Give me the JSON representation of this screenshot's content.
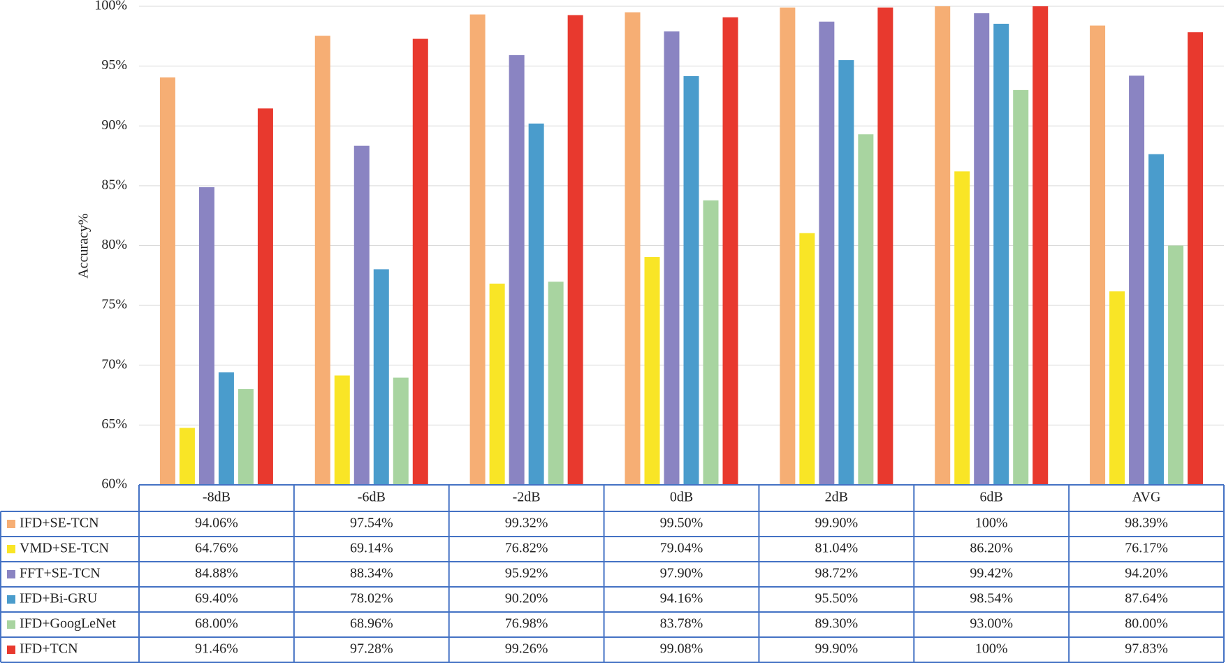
{
  "chart_data": {
    "type": "bar",
    "y_label": "Accuracy%",
    "categories": [
      "-8dB",
      "-6dB",
      "-2dB",
      "0dB",
      "2dB",
      "6dB",
      "AVG"
    ],
    "series": [
      {
        "name": "IFD+SE-TCN",
        "color": "#f6ae74",
        "values": [
          94.06,
          97.54,
          99.32,
          99.5,
          99.9,
          100,
          98.39
        ],
        "value_labels": [
          "94.06%",
          "97.54%",
          "99.32%",
          "99.50%",
          "99.90%",
          "100%",
          "98.39%"
        ]
      },
      {
        "name": "VMD+SE-TCN",
        "color": "#f9e526",
        "values": [
          64.76,
          69.14,
          76.82,
          79.04,
          81.04,
          86.2,
          76.17
        ],
        "value_labels": [
          "64.76%",
          "69.14%",
          "76.82%",
          "79.04%",
          "81.04%",
          "86.20%",
          "76.17%"
        ]
      },
      {
        "name": "FFT+SE-TCN",
        "color": "#8a84c2",
        "values": [
          84.88,
          88.34,
          95.92,
          97.9,
          98.72,
          99.42,
          94.2
        ],
        "value_labels": [
          "84.88%",
          "88.34%",
          "95.92%",
          "97.90%",
          "98.72%",
          "99.42%",
          "94.20%"
        ]
      },
      {
        "name": "IFD+Bi-GRU",
        "color": "#4a9ccc",
        "values": [
          69.4,
          78.02,
          90.2,
          94.16,
          95.5,
          98.54,
          87.64
        ],
        "value_labels": [
          "69.40%",
          "78.02%",
          "90.20%",
          "94.16%",
          "95.50%",
          "98.54%",
          "87.64%"
        ]
      },
      {
        "name": "IFD+GoogLeNet",
        "color": "#a8d4a0",
        "values": [
          68.0,
          68.96,
          76.98,
          83.78,
          89.3,
          93.0,
          80.0
        ],
        "value_labels": [
          "68.00%",
          "68.96%",
          "76.98%",
          "83.78%",
          "89.30%",
          "93.00%",
          "80.00%"
        ]
      },
      {
        "name": "IFD+TCN",
        "color": "#e8392e",
        "values": [
          91.46,
          97.28,
          99.26,
          99.08,
          99.9,
          100,
          97.83
        ],
        "value_labels": [
          "91.46%",
          "97.28%",
          "99.26%",
          "99.08%",
          "99.90%",
          "100%",
          "97.83%"
        ]
      }
    ],
    "ylim": [
      60,
      100
    ],
    "yticks": [
      {
        "value": 60,
        "label": "60%"
      },
      {
        "value": 65,
        "label": "65%"
      },
      {
        "value": 70,
        "label": "70%"
      },
      {
        "value": 75,
        "label": "75%"
      },
      {
        "value": 80,
        "label": "80%"
      },
      {
        "value": 85,
        "label": "85%"
      },
      {
        "value": 90,
        "label": "90%"
      },
      {
        "value": 95,
        "label": "95%"
      },
      {
        "value": 100,
        "label": "100%"
      }
    ],
    "grid": true
  }
}
